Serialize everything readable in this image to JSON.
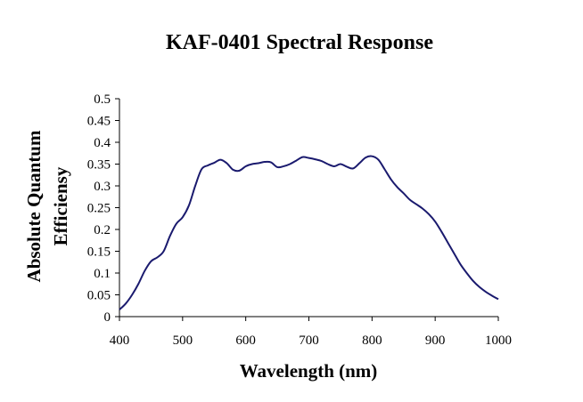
{
  "chart_data": {
    "type": "line",
    "title": "KAF-0401 Spectral Response",
    "xlabel": "Wavelength (nm)",
    "ylabel_line1": "Absolute Quantum",
    "ylabel_line2": "Efficiensy",
    "xlim": [
      400,
      1000
    ],
    "ylim": [
      0,
      0.5
    ],
    "x_ticks": [
      "400",
      "500",
      "600",
      "700",
      "800",
      "900",
      "1000"
    ],
    "y_ticks": [
      "0",
      "0.05",
      "0.1",
      "0.15",
      "0.2",
      "0.25",
      "0.3",
      "0.35",
      "0.4",
      "0.45",
      "0.5"
    ],
    "grid": false,
    "legend": false,
    "line_color": "#1a1a6e",
    "series": [
      {
        "x": [
          400,
          410,
          420,
          430,
          440,
          450,
          460,
          470,
          480,
          490,
          500,
          510,
          520,
          530,
          540,
          550,
          560,
          570,
          580,
          590,
          600,
          610,
          620,
          630,
          640,
          650,
          660,
          670,
          680,
          690,
          700,
          710,
          720,
          730,
          740,
          750,
          760,
          770,
          780,
          790,
          800,
          810,
          820,
          830,
          840,
          850,
          860,
          870,
          880,
          890,
          900,
          910,
          920,
          930,
          940,
          950,
          960,
          970,
          980,
          990,
          1000
        ],
        "y": [
          0.016,
          0.03,
          0.05,
          0.075,
          0.105,
          0.127,
          0.136,
          0.15,
          0.185,
          0.213,
          0.228,
          0.255,
          0.3,
          0.338,
          0.347,
          0.353,
          0.36,
          0.352,
          0.337,
          0.335,
          0.345,
          0.35,
          0.352,
          0.355,
          0.354,
          0.343,
          0.345,
          0.35,
          0.358,
          0.366,
          0.364,
          0.361,
          0.357,
          0.35,
          0.345,
          0.35,
          0.344,
          0.34,
          0.352,
          0.365,
          0.368,
          0.36,
          0.338,
          0.315,
          0.297,
          0.283,
          0.268,
          0.258,
          0.248,
          0.235,
          0.218,
          0.195,
          0.17,
          0.145,
          0.12,
          0.1,
          0.082,
          0.068,
          0.057,
          0.048,
          0.04
        ]
      }
    ]
  }
}
